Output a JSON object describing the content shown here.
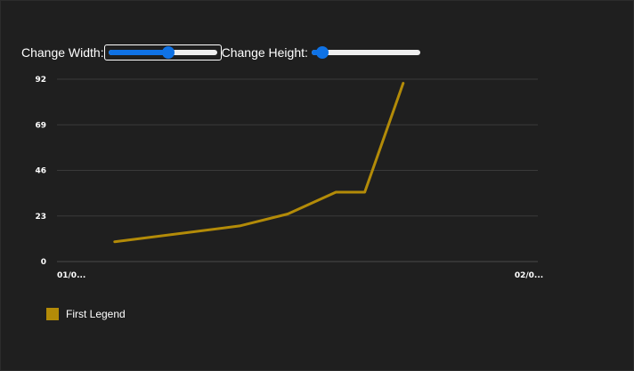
{
  "controls": {
    "width_label": "Change Width:",
    "width_value": 0.55,
    "height_label": "Change Height:",
    "height_value": 0.1
  },
  "colors": {
    "background": "#1f1f1f",
    "series": "#b38b08",
    "slider_accent": "#0f72e5",
    "grid": "#3a3a3a"
  },
  "legend": {
    "label": "First Legend"
  },
  "chart_data": {
    "type": "line",
    "x_tick_labels": [
      "01/0...",
      "02/0..."
    ],
    "x_range": [
      0,
      1
    ],
    "ylim": [
      0,
      92
    ],
    "y_ticks": [
      0,
      23,
      46,
      69,
      92
    ],
    "grid": true,
    "legend_position": "bottom-left",
    "series": [
      {
        "name": "First Legend",
        "x": [
          0.12,
          0.38,
          0.48,
          0.58,
          0.64,
          0.72
        ],
        "y": [
          10,
          18,
          24,
          35,
          35,
          90
        ]
      }
    ]
  }
}
